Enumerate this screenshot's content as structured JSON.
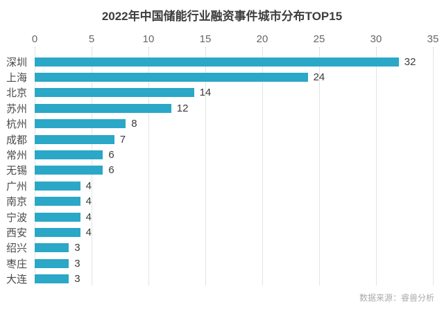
{
  "title": "2022年中国储能行业融资事件城市分布TOP15",
  "source": "数据来源：睿兽分析",
  "colors": {
    "bar": "#2ba7c7",
    "grid": "#e3e3e3",
    "title": "#3d3d3d",
    "category_label": "#4a4a4a",
    "tick_label": "#666666",
    "value_label": "#3a3a3a",
    "source": "#ababab"
  },
  "chart_data": {
    "type": "bar",
    "orientation": "horizontal",
    "title": "2022年中国储能行业融资事件城市分布TOP15",
    "categories": [
      "深圳",
      "上海",
      "北京",
      "苏州",
      "杭州",
      "成都",
      "常州",
      "无锡",
      "广州",
      "南京",
      "宁波",
      "西安",
      "绍兴",
      "枣庄",
      "大连"
    ],
    "values": [
      32,
      24,
      14,
      12,
      8,
      7,
      6,
      6,
      4,
      4,
      4,
      4,
      3,
      3,
      3
    ],
    "xlabel": "",
    "ylabel": "",
    "xlim": [
      0,
      35
    ],
    "xticks": [
      0,
      5,
      10,
      15,
      20,
      25,
      30,
      35
    ],
    "axis_position": "top",
    "grid": true,
    "value_labels_shown": true,
    "legend": "none",
    "source": "数据来源：睿兽分析"
  }
}
